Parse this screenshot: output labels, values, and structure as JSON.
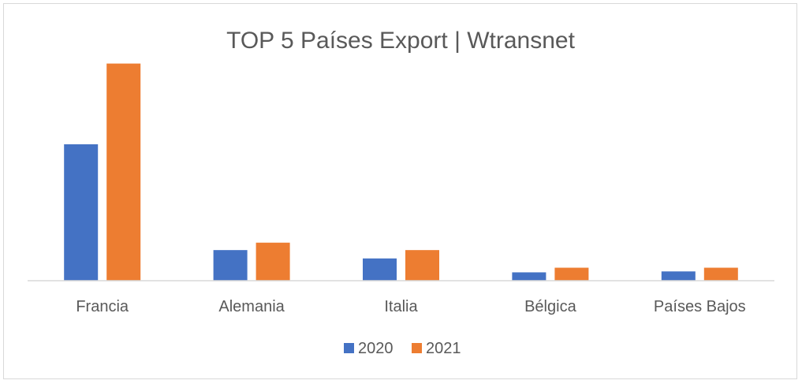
{
  "chart_data": {
    "type": "bar",
    "title": "TOP 5 Países Export | Wtransnet",
    "xlabel": "",
    "ylabel": "",
    "categories": [
      "Francia",
      "Alemania",
      "Italia",
      "Bélgica",
      "Países Bajos"
    ],
    "series": [
      {
        "name": "2020",
        "color": "#4472C4",
        "values": [
          147,
          33,
          24,
          9,
          10
        ]
      },
      {
        "name": "2021",
        "color": "#ED7D31",
        "values": [
          234,
          41,
          33,
          14,
          14
        ]
      }
    ],
    "ylim": [
      0,
      260
    ],
    "y_axis_visible": false,
    "grid": false,
    "legend_position": "bottom"
  }
}
